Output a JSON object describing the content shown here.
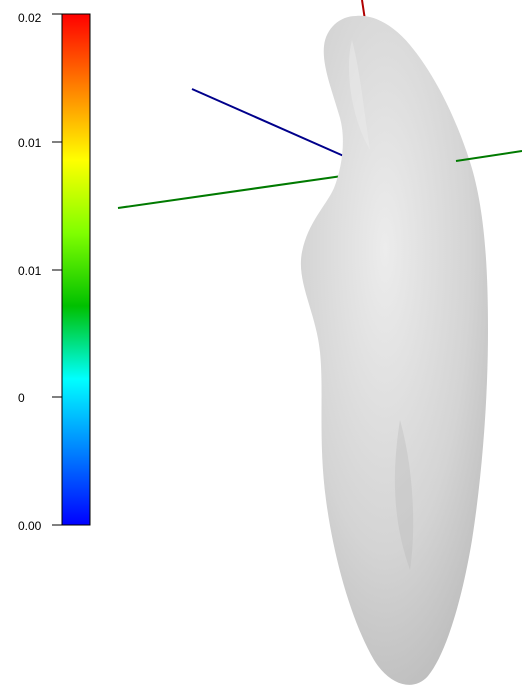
{
  "colorbar": {
    "tick_labels": [
      "0.02",
      "0.01",
      "0.01",
      "0",
      "0.00"
    ],
    "gradient_colors": [
      "#ff0000",
      "#ff8000",
      "#ffff00",
      "#80ff00",
      "#00c000",
      "#00ffff",
      "#0080ff",
      "#0000ff"
    ],
    "tick_color": "#000000",
    "border_color": "#000000"
  },
  "axes": {
    "x_axis_color": "#b00000",
    "y_axis_color": "#007a00",
    "z_axis_color": "#00008b"
  },
  "model": {
    "fill_color": "#d4d4d4",
    "shade_color": "#b8b8b8",
    "highlight_color": "#ececec"
  }
}
